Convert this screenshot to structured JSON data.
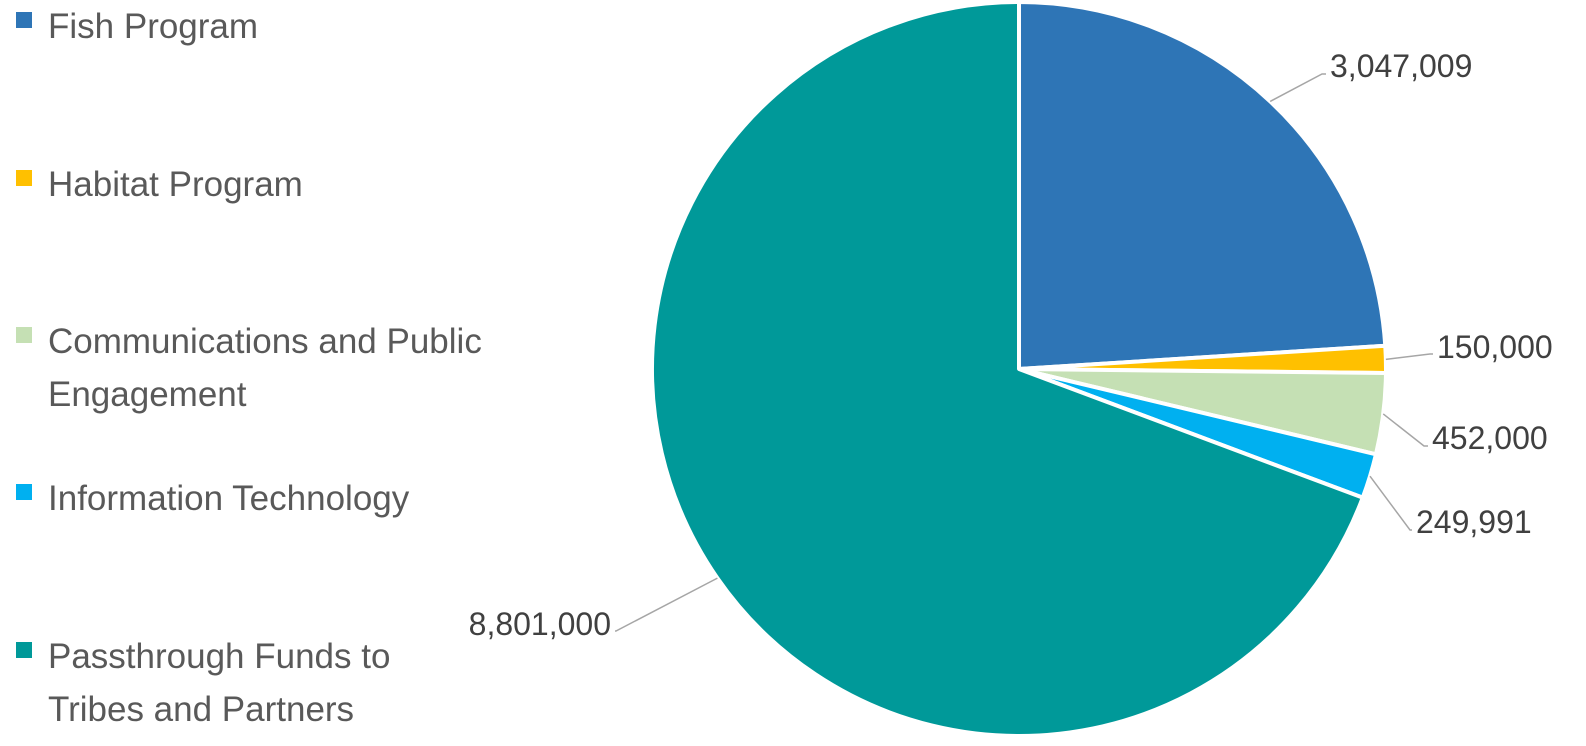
{
  "chart_data": {
    "type": "pie",
    "title": "",
    "legend_position": "left",
    "start_angle": "12 o'clock, clockwise",
    "slices": [
      {
        "label": "Fish Program",
        "value": 3047009,
        "value_label": "3,047,009",
        "color": "#2e75b6"
      },
      {
        "label": "Habitat Program",
        "value": 150000,
        "value_label": "150,000",
        "color": "#ffc000"
      },
      {
        "label": "Communications and Public Engagement",
        "value": 452000,
        "value_label": "452,000",
        "color": "#c5e0b4"
      },
      {
        "label": "Information Technology",
        "value": 249991,
        "value_label": "249,991",
        "color": "#00b0f0"
      },
      {
        "label": "Passthrough Funds to Tribes and Partners",
        "value": 8801000,
        "value_label": "8,801,000",
        "color": "#009999"
      }
    ]
  }
}
